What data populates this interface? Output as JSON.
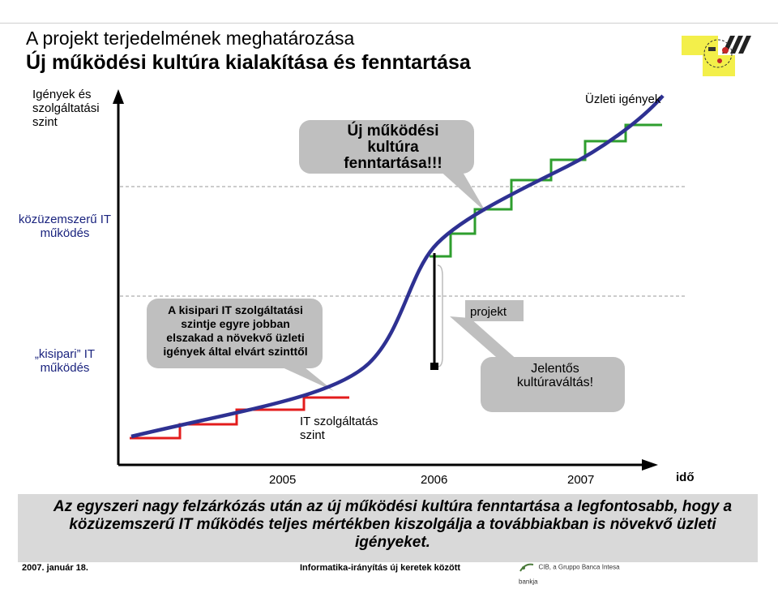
{
  "title": "A projekt terjedelmének meghatározása",
  "subtitle": "Új működési kultúra kialakítása és fenntartása",
  "y_axis_label": "Igények és szolgáltatási szint",
  "x_axis_label": "idő",
  "business_needs_label": "Üzleti igények",
  "it_service_label": "IT szolgáltatás szint",
  "level_high_label": "közüzemszerű IT működés",
  "level_low_label": "„kisipari” IT működés",
  "years": [
    "2005",
    "2006",
    "2007"
  ],
  "bubble_culture": "Új működési kultúra fenntartása!!!",
  "bubble_gap": "A kisipari IT szolgáltatási szintje egyre jobban elszakad a növekvő üzleti igények által elvárt szinttől",
  "project_label": "projekt",
  "culture_change": "Jelentős kultúraváltás!",
  "summary": "Az egyszeri nagy felzárkózás után az új működési kultúra fenntartása a legfontosabb, hogy a közüzemszerű IT működés teljes mértékben kiszolgálja a továbbiakban is növekvő üzleti igényeket.",
  "footer_date": "2007. január 18.",
  "footer_center": "Informatika-irányítás új keretek között",
  "footer_logo": "CIB, a Gruppo Banca Intesa bankja",
  "colors": {
    "curve": "#2e3192",
    "green": "#2e9e2e",
    "red": "#e31c1c",
    "bubble": "#bfbfbf"
  }
}
